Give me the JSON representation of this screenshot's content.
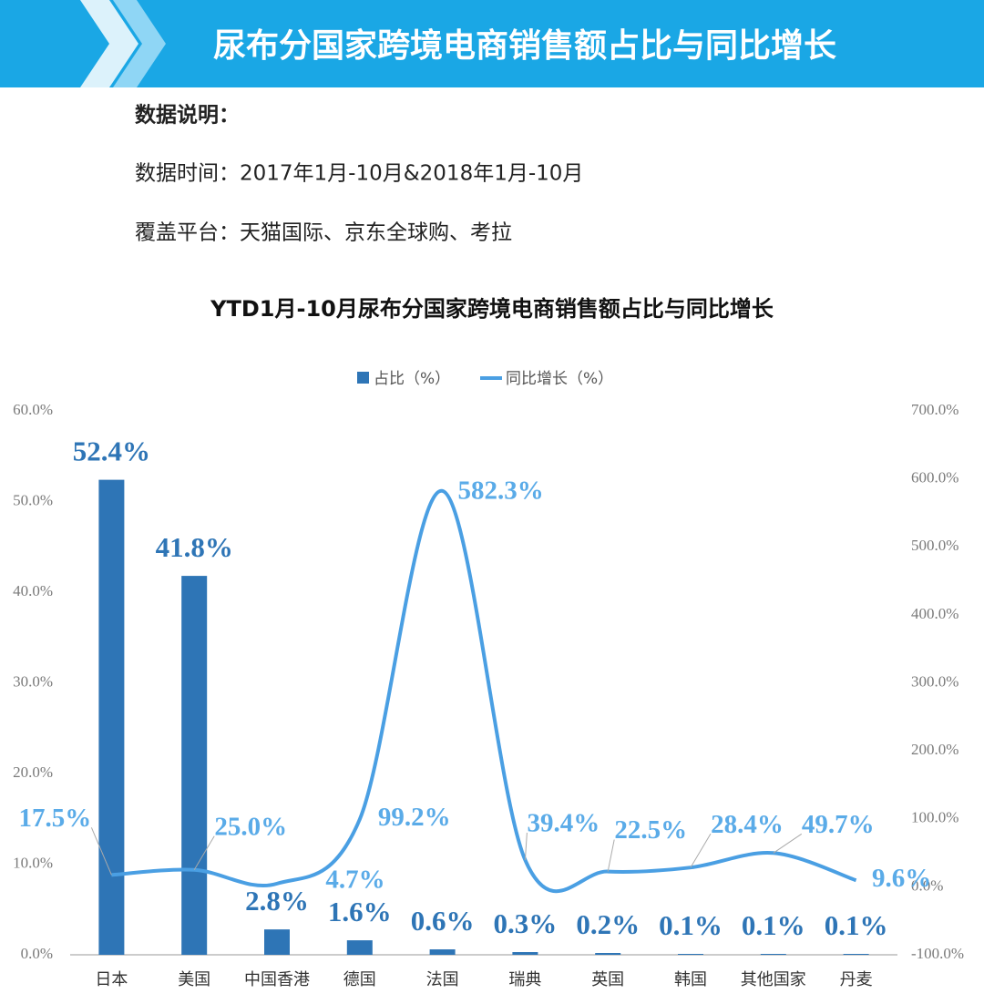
{
  "header": {
    "title": "尿布分国家跨境电商销售额占比与同比增长"
  },
  "notes": {
    "heading": "数据说明：",
    "lines": [
      "数据时间：2017年1月-10月&2018年1月-10月",
      "覆盖平台：天猫国际、京东全球购、考拉"
    ]
  },
  "chart_data": {
    "type": "combo",
    "title": "YTD1月-10月尿布分国家跨境电商销售额占比与同比增长",
    "categories": [
      "日本",
      "美国",
      "中国香港",
      "德国",
      "法国",
      "瑞典",
      "英国",
      "韩国",
      "其他国家",
      "丹麦"
    ],
    "series": [
      {
        "name": "占比（%）",
        "type": "bar",
        "color": "#2e75b6",
        "values": [
          52.4,
          41.8,
          2.8,
          1.6,
          0.6,
          0.3,
          0.2,
          0.1,
          0.1,
          0.1
        ],
        "value_labels": [
          "52.4%",
          "41.8%",
          "2.8%",
          "1.6%",
          "0.6%",
          "0.3%",
          "0.2%",
          "0.1%",
          "0.1%",
          "0.1%"
        ]
      },
      {
        "name": "同比增长（%）",
        "type": "line",
        "axis": "y2",
        "color": "#4a9fe3",
        "values": [
          17.5,
          25.0,
          4.7,
          99.2,
          582.3,
          39.4,
          22.5,
          28.4,
          49.7,
          9.6
        ],
        "value_labels": [
          "17.5%",
          "25.0%",
          "4.7%",
          "99.2%",
          "582.3%",
          "39.4%",
          "22.5%",
          "28.4%",
          "49.7%",
          "9.6%"
        ]
      }
    ],
    "ylim": [
      0,
      60
    ],
    "yticks": [
      {
        "value": 0,
        "label": "0.0%"
      },
      {
        "value": 10,
        "label": "10.0%"
      },
      {
        "value": 20,
        "label": "20.0%"
      },
      {
        "value": 30,
        "label": "30.0%"
      },
      {
        "value": 40,
        "label": "40.0%"
      },
      {
        "value": 50,
        "label": "50.0%"
      },
      {
        "value": 60,
        "label": "60.0%"
      }
    ],
    "y2lim": [
      -100,
      700
    ],
    "y2ticks": [
      {
        "value": -100,
        "label": "-100.0%"
      },
      {
        "value": 0,
        "label": "0.0%"
      },
      {
        "value": 100,
        "label": "100.0%"
      },
      {
        "value": 200,
        "label": "200.0%"
      },
      {
        "value": 300,
        "label": "300.0%"
      },
      {
        "value": 400,
        "label": "400.0%"
      },
      {
        "value": 500,
        "label": "500.0%"
      },
      {
        "value": 600,
        "label": "600.0%"
      },
      {
        "value": 700,
        "label": "700.0%"
      }
    ],
    "grid": false,
    "legend": "top"
  }
}
